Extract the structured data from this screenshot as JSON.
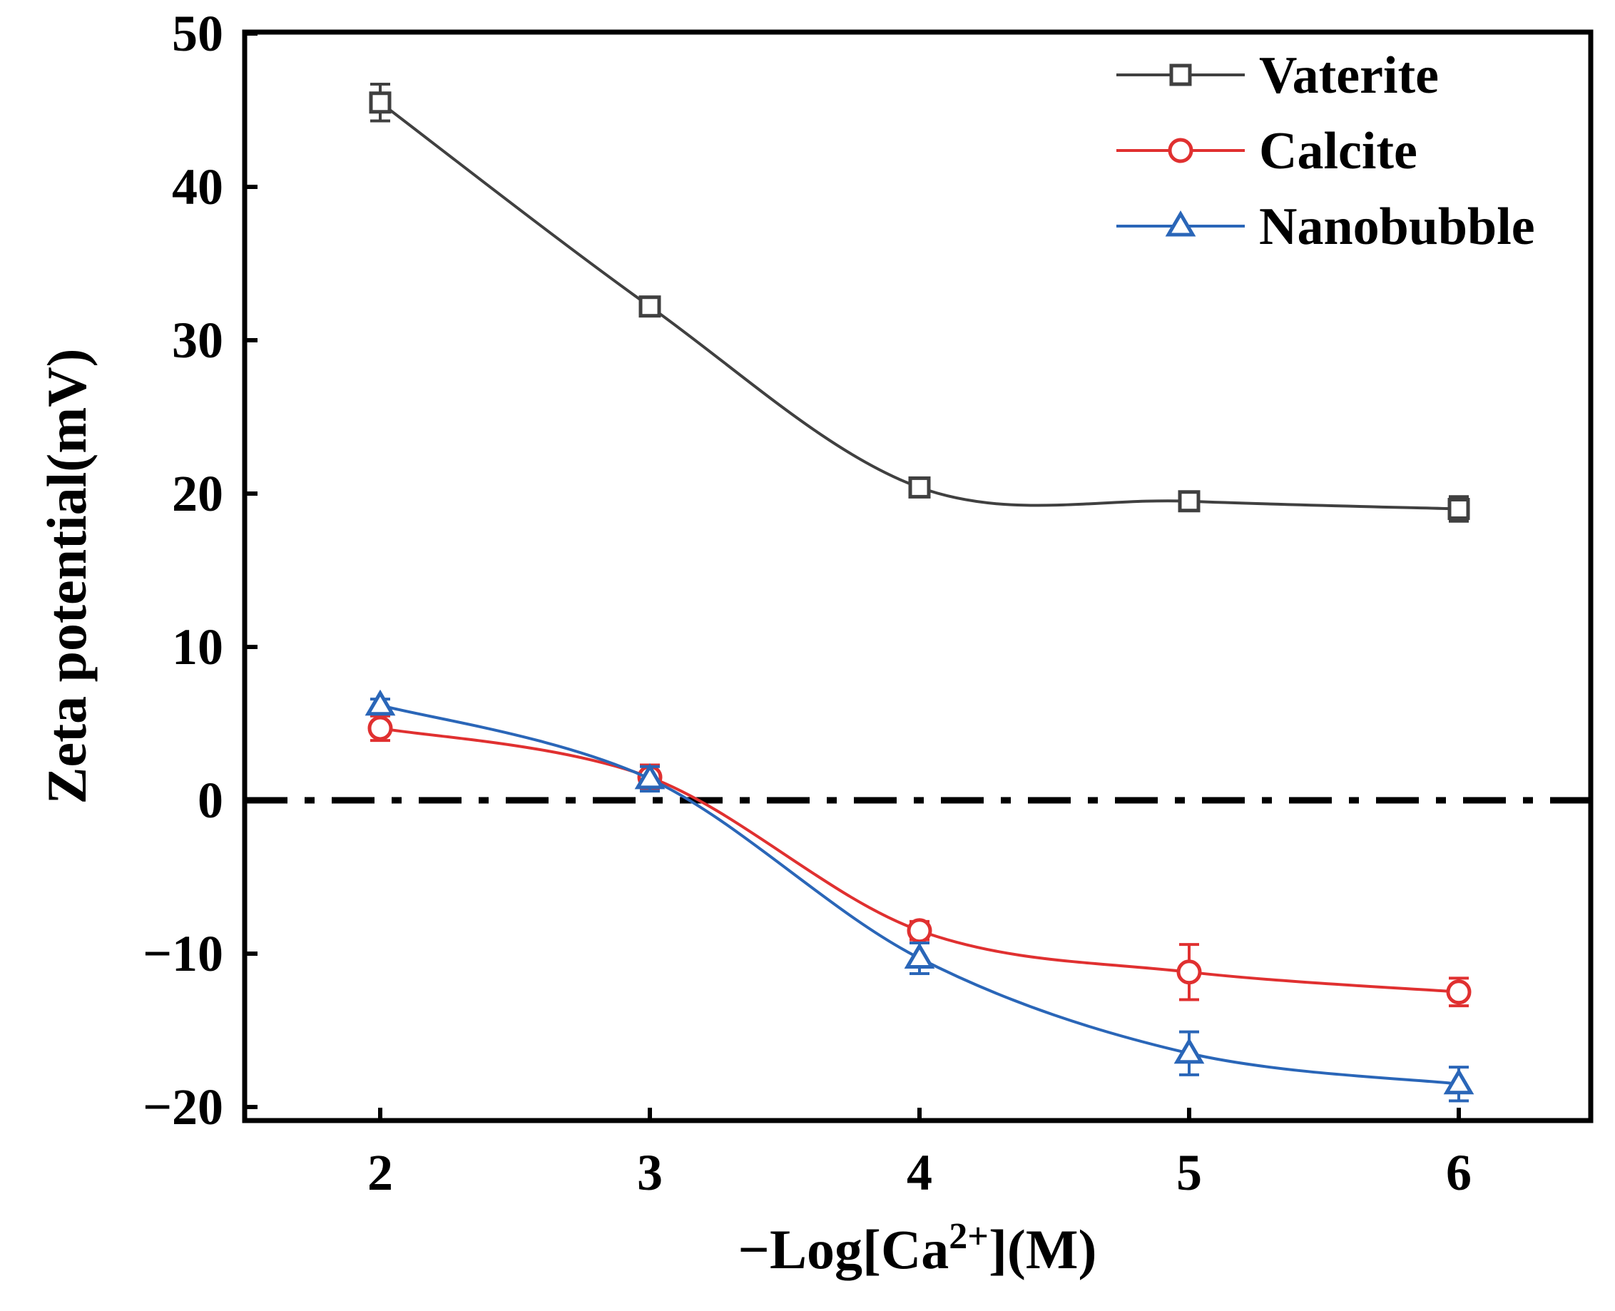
{
  "chart_data": {
    "type": "line",
    "title": "",
    "xlabel_parts": {
      "prefix": "−Log[Ca",
      "superscript": "2+",
      "suffix": "](M)"
    },
    "ylabel": "Zeta potential(mV)",
    "x": [
      2,
      3,
      4,
      5,
      6
    ],
    "xlim": [
      1.5,
      6.5
    ],
    "ylim": [
      -22,
      50
    ],
    "xticks": [
      2,
      3,
      4,
      5,
      6
    ],
    "xtick_labels": [
      "2",
      "3",
      "4",
      "5",
      "6"
    ],
    "yticks": [
      -20,
      -10,
      0,
      10,
      20,
      30,
      40,
      50
    ],
    "ytick_labels": [
      "−20",
      "−10",
      "0",
      "10",
      "20",
      "30",
      "40",
      "50"
    ],
    "reference_line": {
      "y": 0,
      "style": "dash-dot"
    },
    "legend_position": "top-right",
    "series": [
      {
        "name": "Vaterite",
        "color": "#404040",
        "marker": "square",
        "values": [
          45.5,
          32.2,
          20.4,
          19.5,
          19.0
        ],
        "errors": [
          1.2,
          0.5,
          0.5,
          0.5,
          0.8
        ]
      },
      {
        "name": "Calcite",
        "color": "#e03030",
        "marker": "circle",
        "values": [
          4.7,
          1.5,
          -8.5,
          -11.2,
          -12.5
        ],
        "errors": [
          0.8,
          0.8,
          0.6,
          1.8,
          0.9
        ]
      },
      {
        "name": "Nanobubble",
        "color": "#2a66b8",
        "marker": "triangle",
        "values": [
          6.2,
          1.4,
          -10.3,
          -16.5,
          -18.5
        ],
        "errors": [
          0.4,
          0.8,
          1.0,
          1.4,
          1.1
        ]
      }
    ]
  }
}
